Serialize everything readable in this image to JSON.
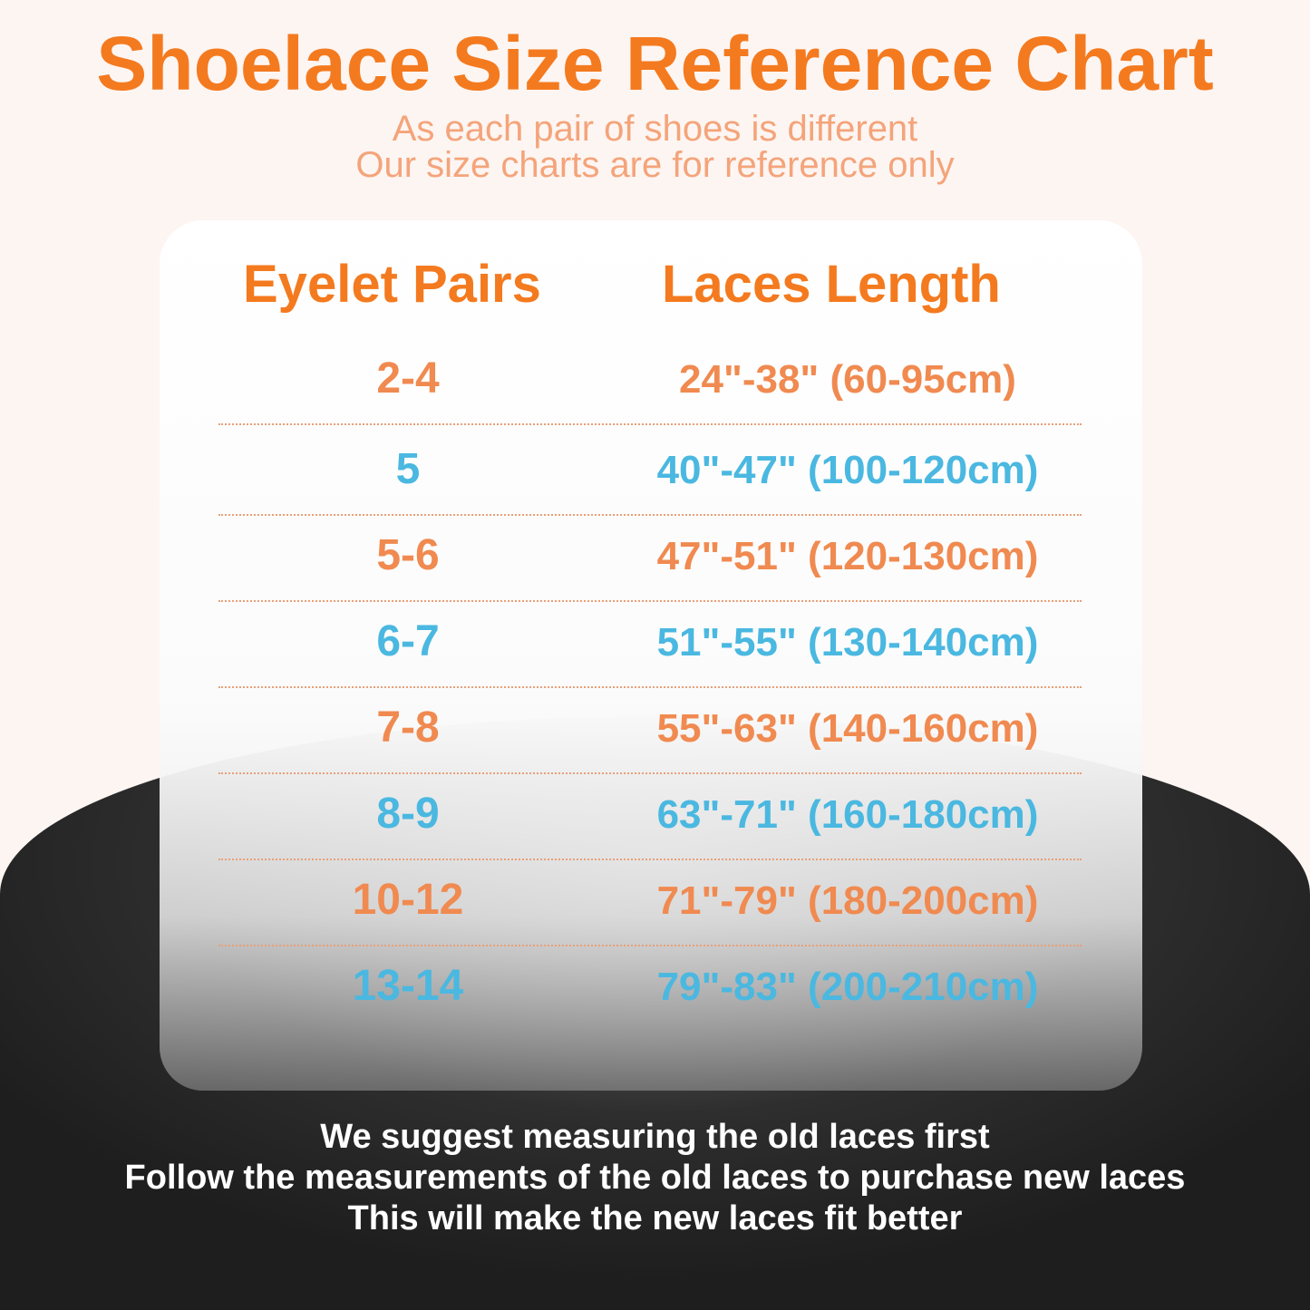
{
  "title": "Shoelace Size Reference Chart",
  "subtitle": [
    "As each pair of shoes is different",
    "Our size charts are for reference only"
  ],
  "table": {
    "headers": [
      "Eyelet Pairs",
      "Laces Length"
    ],
    "rows": [
      {
        "pairs": "2-4",
        "length": "24\"-38\" (60-95cm)",
        "color": "#f08a50"
      },
      {
        "pairs": "5",
        "length": "40\"-47\" (100-120cm)",
        "color": "#4ab8e0"
      },
      {
        "pairs": "5-6",
        "length": "47\"-51\" (120-130cm)",
        "color": "#f08a50"
      },
      {
        "pairs": "6-7",
        "length": "51\"-55\" (130-140cm)",
        "color": "#4ab8e0"
      },
      {
        "pairs": "7-8",
        "length": "55\"-63\" (140-160cm)",
        "color": "#f08a50"
      },
      {
        "pairs": "8-9",
        "length": "63\"-71\" (160-180cm)",
        "color": "#4ab8e0"
      },
      {
        "pairs": "10-12",
        "length": "71\"-79\" (180-200cm)",
        "color": "#f08a50"
      },
      {
        "pairs": "13-14",
        "length": "79\"-83\" (200-210cm)",
        "color": "#4ab8e0"
      }
    ]
  },
  "notes": [
    "We suggest measuring the old laces first",
    "Follow the measurements of the old laces to purchase new laces",
    "This will make the new laces fit better"
  ]
}
